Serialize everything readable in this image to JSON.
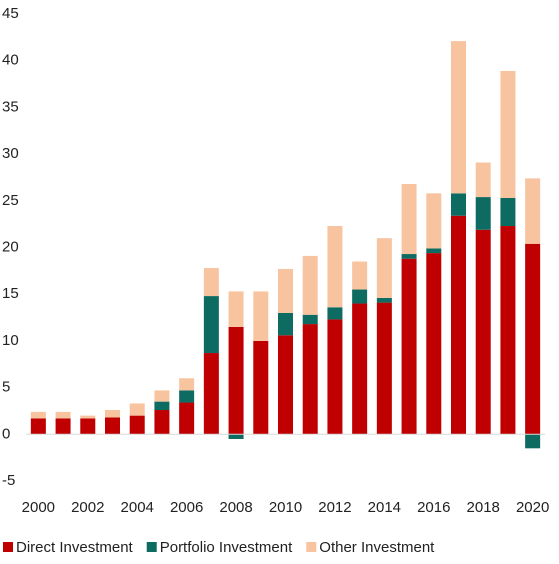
{
  "chart_data": {
    "type": "stacked-bar",
    "categories": [
      "2000",
      null,
      "2002",
      null,
      "2004",
      null,
      "2006",
      null,
      "2008",
      null,
      "2010",
      null,
      "2012",
      null,
      "2014",
      null,
      "2016",
      null,
      "2018",
      null,
      "2020"
    ],
    "series": [
      {
        "name": "Direct Investment",
        "color": "#c00000",
        "values": [
          1.7,
          1.7,
          1.7,
          1.8,
          2.0,
          2.6,
          3.4,
          8.7,
          11.5,
          10.0,
          10.6,
          11.8,
          12.3,
          14.0,
          14.1,
          18.8,
          19.4,
          23.4,
          21.9,
          22.3,
          20.4
        ]
      },
      {
        "name": "Portfolio Investment",
        "color": "#0e6b62",
        "values": [
          0,
          0,
          0,
          0,
          0,
          0.9,
          1.3,
          6.1,
          -0.5,
          0,
          2.4,
          1.0,
          1.3,
          1.5,
          0.5,
          0.5,
          0.5,
          2.4,
          3.5,
          3.0,
          -1.5
        ]
      },
      {
        "name": "Other Investment",
        "color": "#f8c4a0",
        "values": [
          0.7,
          0.7,
          0.3,
          0.8,
          1.3,
          1.2,
          1.3,
          3.0,
          3.8,
          5.3,
          4.7,
          6.3,
          8.7,
          3.0,
          6.4,
          7.5,
          5.9,
          16.3,
          3.7,
          13.6,
          7.0
        ]
      }
    ],
    "ylim": [
      -5,
      45
    ],
    "yticks": [
      -5,
      0,
      5,
      10,
      15,
      20,
      25,
      30,
      35,
      40,
      45
    ],
    "grid": false,
    "legend": "bottom"
  }
}
